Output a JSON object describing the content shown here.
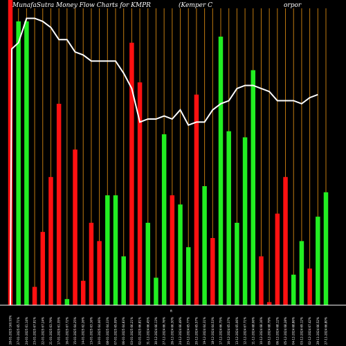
{
  "chart_data": {
    "type": "bar",
    "title_left": "MunafaSutra  Money Flow  Charts for KMPR",
    "title_right": "(Kemper C                                    orpor",
    "x_marker": "ft",
    "grid": "vertical orange lines",
    "colors": {
      "up": "#22ee22",
      "down": "#ff1111",
      "line": "#ffffff",
      "grid": "#c07a10",
      "background": "#000000"
    },
    "bars": [
      {
        "category": "28-01-2025 160.93%",
        "value": 100,
        "direction": "down"
      },
      {
        "category": "27-01-2025 65.71%",
        "value": 93,
        "direction": "up"
      },
      {
        "category": "24-01-2025 61.14%",
        "value": 93,
        "direction": "up"
      },
      {
        "category": "23-01-2025 67.91%",
        "value": 6,
        "direction": "down"
      },
      {
        "category": "22-01-2025 67.24%",
        "value": 24,
        "direction": "down"
      },
      {
        "category": "21-01-2025 63.79%",
        "value": 42,
        "direction": "down"
      },
      {
        "category": "17-01-2025 61.35%",
        "value": 66,
        "direction": "down"
      },
      {
        "category": "16-01-2025 67.72%",
        "value": 2,
        "direction": "up"
      },
      {
        "category": "15-01-2025 64.25%",
        "value": 51,
        "direction": "down"
      },
      {
        "category": "14-01-2025 62.26%",
        "value": 8,
        "direction": "down"
      },
      {
        "category": "13-01-2025 63.16%",
        "value": 27,
        "direction": "down"
      },
      {
        "category": "10-01-2025 64.06%",
        "value": 21,
        "direction": "down"
      },
      {
        "category": "08-01-2025 64.33%",
        "value": 36,
        "direction": "up"
      },
      {
        "category": "07-01-2025 65.09%",
        "value": 36,
        "direction": "up"
      },
      {
        "category": "06-01-2025 64.83%",
        "value": 16,
        "direction": "up"
      },
      {
        "category": "03-01-2025 66.21%",
        "value": 86,
        "direction": "down"
      },
      {
        "category": "02-01-2025 66.81%",
        "value": 73,
        "direction": "down"
      },
      {
        "category": "31-12-2024 66.45%",
        "value": 27,
        "direction": "up"
      },
      {
        "category": "30-12-2024 66.13%",
        "value": 9,
        "direction": "up"
      },
      {
        "category": "27-12-2024 66.76%",
        "value": 56,
        "direction": "up"
      },
      {
        "category": "26-12-2024 66.30%",
        "value": 36,
        "direction": "down"
      },
      {
        "category": "24-12-2024 66.49%",
        "value": 33,
        "direction": "up"
      },
      {
        "category": "23-12-2024 65.77%",
        "value": 19,
        "direction": "up"
      },
      {
        "category": "20-12-2024 65.57%",
        "value": 69,
        "direction": "down"
      },
      {
        "category": "19-12-2024 64.31%",
        "value": 39,
        "direction": "up"
      },
      {
        "category": "18-12-2024 64.53%",
        "value": 22,
        "direction": "down"
      },
      {
        "category": "17-12-2024 66.75%",
        "value": 88,
        "direction": "up"
      },
      {
        "category": "16-12-2024 65.37%",
        "value": 57,
        "direction": "up"
      },
      {
        "category": "13-12-2024 65.06%",
        "value": 27,
        "direction": "up"
      },
      {
        "category": "12-12-2024 67.71%",
        "value": 55,
        "direction": "up"
      },
      {
        "category": "11-12-2024 68.06%",
        "value": 77,
        "direction": "up"
      },
      {
        "category": "10-12-2024 68.16%",
        "value": 16,
        "direction": "down"
      },
      {
        "category": "09-12-2024 68.79%",
        "value": 1,
        "direction": "down"
      },
      {
        "category": "06-12-2024 68.12%",
        "value": 30,
        "direction": "down"
      },
      {
        "category": "05-12-2024 68.28%",
        "value": 42,
        "direction": "down"
      },
      {
        "category": "04-12-2024 68.86%",
        "value": 10,
        "direction": "up"
      },
      {
        "category": "03-12-2024 69.12%",
        "value": 21,
        "direction": "up"
      },
      {
        "category": "02-12-2024 67.42%",
        "value": 12,
        "direction": "down"
      },
      {
        "category": "29-11-2024 66.52%",
        "value": 29,
        "direction": "up"
      },
      {
        "category": "27-11-2024 66.80%",
        "value": 37,
        "direction": "up"
      }
    ],
    "line_values": [
      84,
      86,
      94,
      94,
      93,
      91,
      87,
      87,
      83,
      82,
      80,
      80,
      80,
      80,
      76,
      71,
      60,
      61,
      61,
      62,
      61,
      64,
      59,
      60,
      60,
      64,
      66,
      67,
      71,
      72,
      72,
      71,
      70,
      67,
      67,
      67,
      66,
      68,
      69
    ],
    "line_start_value": 0,
    "ylim": [
      0,
      100
    ]
  }
}
